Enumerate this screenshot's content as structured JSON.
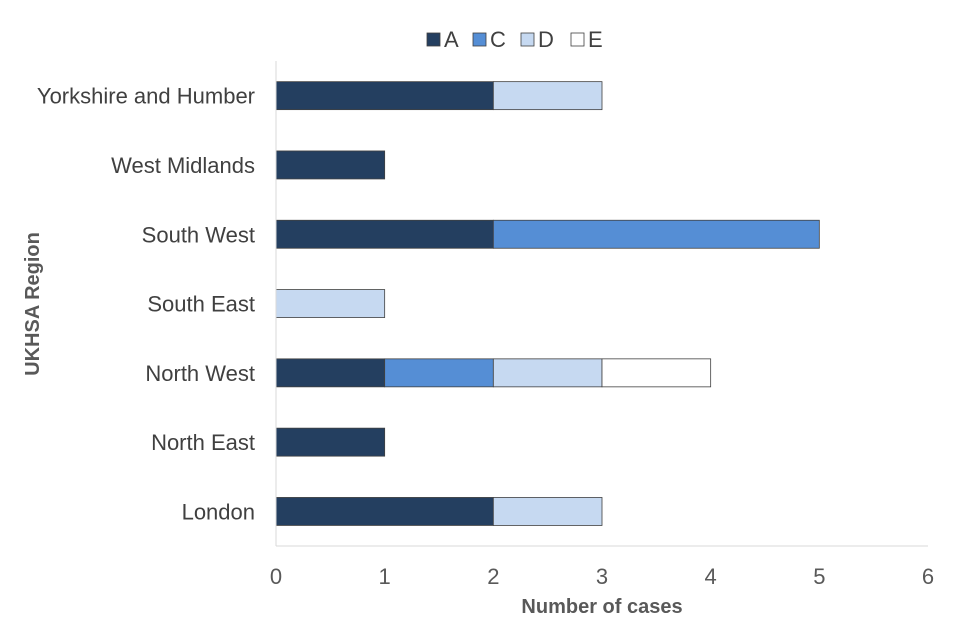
{
  "chart_data": {
    "type": "bar",
    "orientation": "horizontal",
    "stacked": true,
    "categories": [
      "Yorkshire and Humber",
      "West Midlands",
      "South West",
      "South East",
      "North West",
      "North East",
      "London"
    ],
    "series": [
      {
        "name": "A",
        "color": "#243f60",
        "values": [
          2,
          1,
          2,
          0,
          1,
          1,
          2
        ]
      },
      {
        "name": "C",
        "color": "#558ed5",
        "values": [
          0,
          0,
          3,
          0,
          1,
          0,
          0
        ]
      },
      {
        "name": "D",
        "color": "#c6d9f1",
        "values": [
          1,
          0,
          0,
          1,
          1,
          0,
          1
        ]
      },
      {
        "name": "E",
        "color": "#ffffff",
        "values": [
          0,
          0,
          0,
          0,
          1,
          0,
          0
        ]
      }
    ],
    "xlabel": "Number of cases",
    "ylabel": "UKHSA Region",
    "xlim": [
      0,
      6
    ],
    "xticks": [
      0,
      1,
      2,
      3,
      4,
      5,
      6
    ],
    "grid": false,
    "legend_position": "top"
  }
}
